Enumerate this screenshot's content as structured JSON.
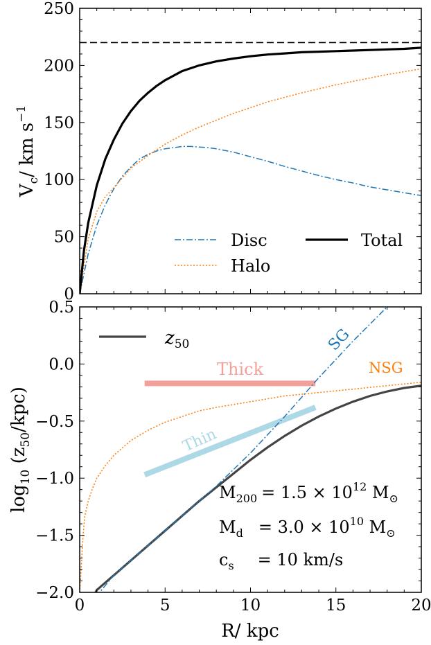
{
  "chart_data": [
    {
      "type": "line",
      "ylabel": "V_c/ km s^-1",
      "ylabel_main": "V",
      "ylabel_sub": "c",
      "ylabel_rest": "/ km s",
      "ylabel_sup": "−1",
      "xlim": [
        0,
        20
      ],
      "ylim": [
        0,
        250
      ],
      "yticks": [
        "0",
        "50",
        "100",
        "150",
        "200",
        "250"
      ],
      "legend_location": "bottom-right",
      "legend": {
        "disc": "Disc",
        "halo": "Halo",
        "total": "Total"
      },
      "colors": {
        "disc": "#1f77b4",
        "halo": "#ff7f0e",
        "total": "#000000",
        "dashed": "#000000"
      },
      "series": [
        {
          "name": "Disc",
          "style": "dash-dot",
          "x": [
            0,
            0.5,
            1,
            1.5,
            2,
            2.5,
            3,
            3.5,
            4,
            4.5,
            5,
            5.5,
            6,
            6.5,
            7,
            7.5,
            8,
            9,
            10,
            11,
            12,
            13,
            14,
            15,
            16,
            17,
            18,
            19,
            20
          ],
          "y": [
            0,
            35,
            60,
            78,
            92,
            103,
            111,
            118,
            122,
            125,
            127,
            128,
            129,
            129,
            128.5,
            128,
            127,
            124,
            120,
            116,
            111.5,
            107.5,
            103.5,
            100,
            97,
            93.5,
            91,
            88.5,
            86
          ]
        },
        {
          "name": "Halo",
          "style": "dotted",
          "x": [
            0,
            0.5,
            1,
            1.5,
            2,
            3,
            4,
            5,
            6,
            7,
            8,
            9,
            10,
            11,
            12,
            13,
            14,
            15,
            16,
            17,
            18,
            19,
            20
          ],
          "y": [
            0,
            48,
            72,
            85,
            93,
            110,
            121,
            131,
            139,
            146,
            152,
            158,
            163,
            168,
            172,
            176,
            179.5,
            183,
            186,
            189,
            192,
            194.5,
            197
          ]
        },
        {
          "name": "Total",
          "style": "solid",
          "x": [
            0,
            0.25,
            0.5,
            1,
            1.5,
            2,
            2.5,
            3,
            3.5,
            4,
            4.5,
            5,
            6,
            7,
            8,
            9,
            10,
            11,
            12,
            13,
            14,
            15,
            16,
            17,
            18,
            19,
            20
          ],
          "y": [
            0,
            38,
            62,
            95,
            118,
            135,
            149,
            160,
            169,
            176,
            182,
            187,
            195,
            200,
            203.5,
            206,
            208,
            209.5,
            210.5,
            211.5,
            212,
            212.5,
            213,
            213.5,
            214,
            214.5,
            215.5
          ]
        },
        {
          "style": "dashed-reference",
          "x": [
            0,
            20
          ],
          "y": [
            220,
            220
          ]
        }
      ]
    },
    {
      "type": "line",
      "xlabel": "R/ kpc",
      "ylabel": "log10 (z50/kpc)",
      "ylabel_main": "log",
      "ylabel_sub": "10",
      "ylabel_rest": " (z",
      "ylabel_sub2": "50",
      "ylabel_end": "/kpc)",
      "xlim": [
        0,
        20
      ],
      "ylim": [
        -2.0,
        0.5
      ],
      "xticks": [
        "0",
        "5",
        "10",
        "15",
        "20"
      ],
      "yticks": [
        "−2.0",
        "−1.5",
        "−1.0",
        "−0.5",
        "0.0",
        "0.5"
      ],
      "legend_location": "top-left",
      "legend": {
        "z50_main": "z",
        "z50_sub": "50"
      },
      "colors": {
        "z50": "#444444",
        "sg": "#1f77b4",
        "nsg": "#ff7f0e",
        "thick": "#f4a09a",
        "thin": "#add8e6"
      },
      "series": [
        {
          "name": "z50",
          "style": "solid",
          "x": [
            0.5,
            1,
            2,
            3,
            4,
            5,
            6,
            7,
            8,
            9,
            10,
            11,
            12,
            13,
            14,
            15,
            16,
            17,
            18,
            19,
            20
          ],
          "y": [
            -2.12,
            -1.98,
            -1.85,
            -1.72,
            -1.59,
            -1.46,
            -1.33,
            -1.2,
            -1.08,
            -0.96,
            -0.84,
            -0.73,
            -0.63,
            -0.54,
            -0.46,
            -0.39,
            -0.33,
            -0.28,
            -0.24,
            -0.21,
            -0.19
          ]
        },
        {
          "name": "SG",
          "style": "dash-dot",
          "x": [
            0.5,
            2,
            4,
            6,
            8,
            10,
            12,
            14,
            16,
            18,
            18.7
          ],
          "y": [
            -2.12,
            -1.85,
            -1.59,
            -1.33,
            -1.07,
            -0.78,
            -0.46,
            -0.12,
            0.2,
            0.5,
            0.6
          ]
        },
        {
          "name": "NSG",
          "style": "dotted",
          "x": [
            0,
            0.1,
            0.2,
            0.3,
            0.5,
            0.75,
            1,
            1.5,
            2,
            3,
            4,
            5,
            6,
            7,
            8,
            10,
            12,
            14,
            16,
            18,
            20
          ],
          "y": [
            -2.0,
            -1.75,
            -1.5,
            -1.33,
            -1.2,
            -1.09,
            -1.0,
            -0.89,
            -0.8,
            -0.67,
            -0.58,
            -0.51,
            -0.46,
            -0.41,
            -0.38,
            -0.33,
            -0.28,
            -0.25,
            -0.22,
            -0.19,
            -0.16
          ]
        },
        {
          "name": "Thick",
          "style": "band",
          "x": [
            3.8,
            13.8
          ],
          "y": [
            -0.17,
            -0.17
          ]
        },
        {
          "name": "Thin",
          "style": "band",
          "x": [
            3.8,
            13.8
          ],
          "y": [
            -0.97,
            -0.38
          ]
        }
      ],
      "annotations": {
        "sg": "SG",
        "nsg": "NSG",
        "thick": "Thick",
        "thin": "Thin",
        "m200_label": "M",
        "m200_sub": "200",
        "m200_value": "= 1.5 × 10",
        "m200_exp": "12",
        "m200_unit": " M",
        "md_label": "M",
        "md_sub": "d",
        "md_value": "= 3.0 × 10",
        "md_exp": "10",
        "md_unit": " M",
        "sun_symbol": "⊙",
        "cs_label": "c",
        "cs_sub": "s",
        "cs_value": "= 10 km/s"
      }
    }
  ]
}
